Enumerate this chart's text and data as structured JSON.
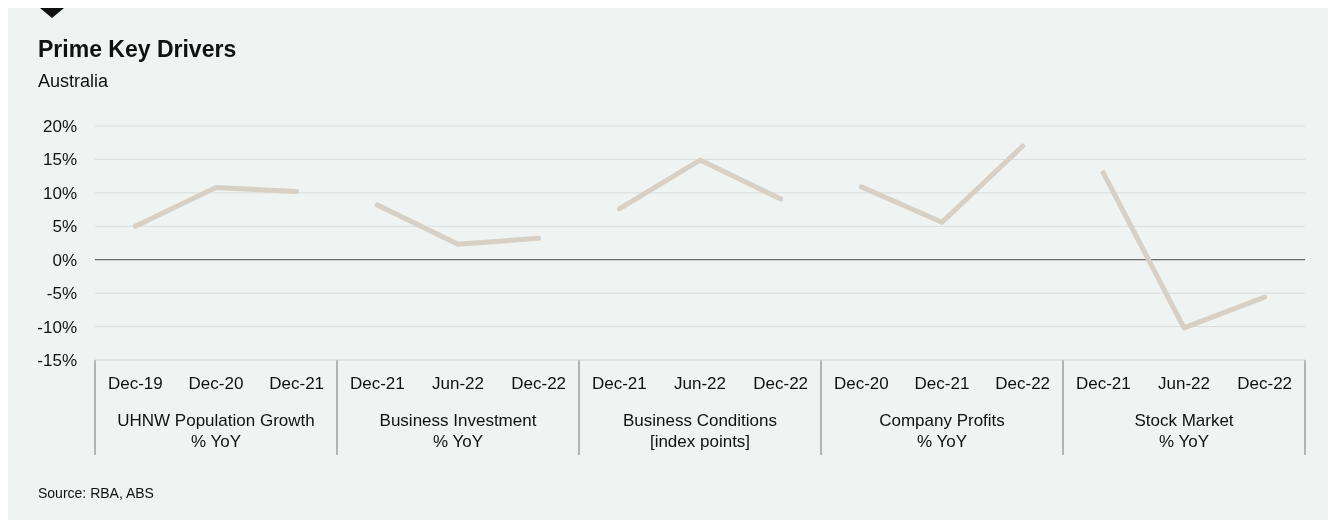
{
  "chart_data": {
    "type": "line",
    "title": "Prime Key Drivers",
    "subtitle": "Australia",
    "categories": [
      "Dec-19",
      "Dec-20",
      "Dec-21",
      "Dec-21",
      "Jun-22",
      "Dec-22",
      "Dec-21",
      "Jun-22",
      "Dec-22",
      "Dec-20",
      "Dec-21",
      "Dec-22",
      "Dec-21",
      "Jun-22",
      "Dec-22"
    ],
    "series": [
      {
        "color": "#d8d0c4",
        "values": [
          5.0,
          10.8,
          10.2,
          null,
          null,
          null,
          null,
          null,
          null,
          null,
          null,
          null,
          null,
          null,
          null
        ]
      },
      {
        "color": "#d8d0c4",
        "values": [
          null,
          null,
          null,
          8.2,
          2.3,
          3.2,
          null,
          null,
          null,
          null,
          null,
          null,
          null,
          null,
          null
        ]
      },
      {
        "color": "#d8d0c4",
        "values": [
          null,
          null,
          null,
          null,
          null,
          null,
          7.6,
          14.9,
          9.1,
          null,
          null,
          null,
          null,
          null,
          null
        ]
      },
      {
        "color": "#d8d0c4",
        "values": [
          null,
          null,
          null,
          null,
          null,
          null,
          null,
          null,
          null,
          10.9,
          5.6,
          17.0,
          null,
          null,
          null
        ]
      },
      {
        "color": "#d8d0c4",
        "values": [
          null,
          null,
          null,
          null,
          null,
          null,
          null,
          null,
          null,
          null,
          null,
          null,
          13.0,
          -10.2,
          -5.6
        ]
      }
    ],
    "ylim": [
      -15,
      20
    ],
    "yticks": [
      {
        "value": -15,
        "label": "-15%"
      },
      {
        "value": -10,
        "label": "-10%"
      },
      {
        "value": -5,
        "label": "-5%"
      },
      {
        "value": 0,
        "label": "0%"
      },
      {
        "value": 5,
        "label": "5%"
      },
      {
        "value": 10,
        "label": "10%"
      },
      {
        "value": 15,
        "label": "15%"
      },
      {
        "value": 20,
        "label": "20%"
      }
    ],
    "grid": "y",
    "marker": "none",
    "line_style": "solid",
    "ref_lines": [
      {
        "axis": "y",
        "value": 0,
        "color": "#6b6b6b"
      }
    ],
    "annotations": [
      "UHNW Population Growth\n% YoY",
      "Business Investment\n% YoY",
      "Business Conditions\n[index points]",
      "Company Profits\n% YoY",
      "Stock Market\n% YoY",
      "Source: RBA, ABS"
    ]
  }
}
